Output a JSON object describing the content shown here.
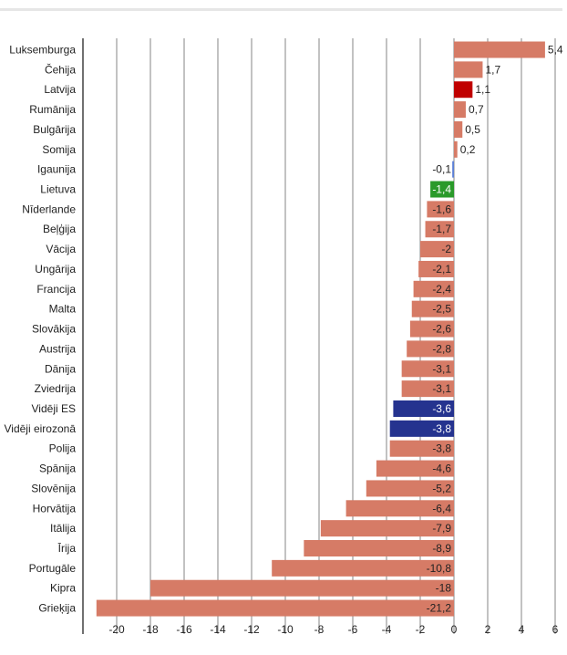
{
  "chart_data": {
    "type": "bar",
    "orientation": "horizontal",
    "title": "",
    "xlabel": "",
    "ylabel": "",
    "xlim": [
      -21.2,
      6
    ],
    "xticks": [
      -20,
      -18,
      -16,
      -14,
      -12,
      -10,
      -8,
      -6,
      -4,
      -2,
      0,
      2,
      4,
      6
    ],
    "grid": true,
    "categories": [
      "Luksemburga",
      "Čehija",
      "Latvija",
      "Rumānija",
      "Bulgārija",
      "Somija",
      "Igaunija",
      "Lietuva",
      "Nīderlande",
      "Beļģija",
      "Vācija",
      "Ungārija",
      "Francija",
      "Malta",
      "Slovākija",
      "Austrija",
      "Dānija",
      "Zviedrija",
      "Vidēji ES",
      "Vidēji eirozonā",
      "Polija",
      "Spānija",
      "Slovēnija",
      "Horvātija",
      "Itālija",
      "Īrija",
      "Portugāle",
      "Kipra",
      "Grieķija"
    ],
    "values": [
      5.4,
      1.7,
      1.1,
      0.7,
      0.5,
      0.2,
      -0.1,
      -1.4,
      -1.6,
      -1.7,
      -2,
      -2.1,
      -2.4,
      -2.5,
      -2.6,
      -2.8,
      -3.1,
      -3.1,
      -3.6,
      -3.8,
      -3.8,
      -4.6,
      -5.2,
      -6.4,
      -7.9,
      -8.9,
      -10.8,
      -18,
      -21.2
    ],
    "value_labels": [
      "5,4",
      "1,7",
      "1,1",
      "0,7",
      "0,5",
      "0,2",
      "-0,1",
      "-1,4",
      "-1,6",
      "-1,7",
      "-2",
      "-2,1",
      "-2,4",
      "-2,5",
      "-2,6",
      "-2,8",
      "-3,1",
      "-3,1",
      "-3,6",
      "-3,8",
      "-3,8",
      "-4,6",
      "-5,2",
      "-6,4",
      "-7,9",
      "-8,9",
      "-10,8",
      "-18",
      "-21,2"
    ],
    "colors": {
      "default": "#d67b66",
      "highlights": {
        "Latvija": "#c00000",
        "Igaunija": "#5b7fd6",
        "Lietuva": "#2a9a2a",
        "Vidēji ES": "#25338f",
        "Vidēji eirozonā": "#25338f"
      }
    }
  }
}
